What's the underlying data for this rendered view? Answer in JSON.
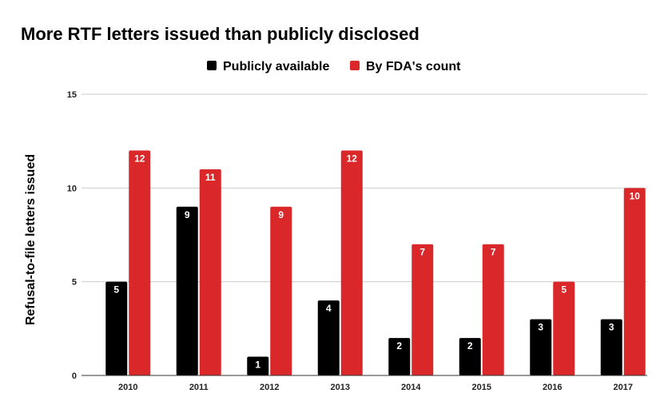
{
  "chart_data": {
    "type": "bar",
    "title": "More RTF letters issued than publicly disclosed",
    "xlabel": "",
    "ylabel": "Refusal-to-file letters issued",
    "categories": [
      "2010",
      "2011",
      "2012",
      "2013",
      "2014",
      "2015",
      "2016",
      "2017"
    ],
    "series": [
      {
        "name": "Publicly available",
        "color": "#000000",
        "values": [
          5,
          9,
          1,
          4,
          2,
          2,
          3,
          3
        ]
      },
      {
        "name": "By FDA's count",
        "color": "#d9272a",
        "values": [
          12,
          11,
          9,
          12,
          7,
          7,
          5,
          10
        ]
      }
    ],
    "ylim": [
      0,
      15
    ],
    "yticks": [
      0,
      5,
      10,
      15
    ],
    "grid": true,
    "legend_position": "top-center",
    "data_labels": true
  }
}
